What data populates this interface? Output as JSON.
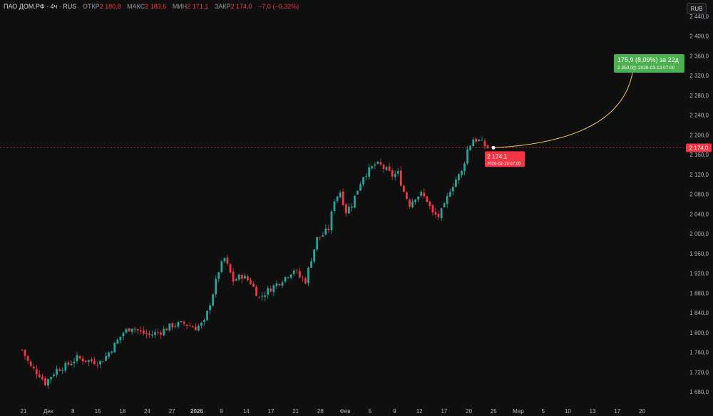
{
  "legend": {
    "symbol": "ПАО ДОМ.РФ · 4ч · RUS",
    "open_label": "ОТКР",
    "open_value": "2 180,8",
    "high_label": "МАКС",
    "high_value": "2 183,6",
    "low_label": "МИН",
    "low_value": "2 171,1",
    "close_label": "ЗАКР",
    "close_value": "2 174,0",
    "change": "−7,0 (−0,32%)"
  },
  "currency_button": "RUB",
  "colors": {
    "background": "#0f0f0f",
    "up": "#26a69a",
    "down": "#f23645",
    "price_line": "#f23645",
    "projection_curve": "#f2c94c",
    "target_badge": "#4caf50",
    "current_badge": "#f23645"
  },
  "current_price_tag": "2 174,0",
  "projection": {
    "start": {
      "price": 2174.1,
      "label": "2 174,1",
      "date": "2026-02-19 07:00"
    },
    "end": {
      "price": 2350.0,
      "label": "2 350,0",
      "date": "2026-03-13 07:00"
    },
    "change_text": "175,9 (8,09%) за 22д"
  },
  "chart_data": {
    "type": "candlestick",
    "timeframe": "4ч",
    "ylim": [
      1660,
      2440
    ],
    "y_ticks": [
      "1 680,0",
      "1 720,0",
      "1 760,0",
      "1 800,0",
      "1 840,0",
      "1 880,0",
      "1 920,0",
      "1 960,0",
      "2 000,0",
      "2 040,0",
      "2 080,0",
      "2 120,0",
      "2 160,0",
      "2 200,0",
      "2 240,0",
      "2 280,0",
      "2 320,0",
      "2 360,0",
      "2 400,0",
      "2 440,0"
    ],
    "x_ticks": [
      "21",
      "Дек",
      "8",
      "15",
      "18",
      "24",
      "27",
      "2026",
      "9",
      "14",
      "17",
      "21",
      "28",
      "Фев",
      "5",
      "9",
      "12",
      "17",
      "20",
      "25",
      "Мар",
      "5",
      "10",
      "13",
      "17",
      "20"
    ],
    "price_path": [
      [
        0,
        1765
      ],
      [
        3,
        1730
      ],
      [
        6,
        1715
      ],
      [
        8,
        1698
      ],
      [
        10,
        1712
      ],
      [
        12,
        1725
      ],
      [
        15,
        1732
      ],
      [
        19,
        1748
      ],
      [
        23,
        1743
      ],
      [
        27,
        1740
      ],
      [
        29,
        1752
      ],
      [
        32,
        1775
      ],
      [
        35,
        1800
      ],
      [
        38,
        1812
      ],
      [
        41,
        1800
      ],
      [
        44,
        1795
      ],
      [
        48,
        1802
      ],
      [
        52,
        1815
      ],
      [
        56,
        1818
      ],
      [
        60,
        1810
      ],
      [
        63,
        1820
      ],
      [
        66,
        1880
      ],
      [
        68,
        1925
      ],
      [
        70,
        1950
      ],
      [
        73,
        1905
      ],
      [
        76,
        1915
      ],
      [
        79,
        1902
      ],
      [
        82,
        1870
      ],
      [
        85,
        1885
      ],
      [
        88,
        1898
      ],
      [
        91,
        1912
      ],
      [
        94,
        1928
      ],
      [
        96,
        1912
      ],
      [
        98,
        1905
      ],
      [
        100,
        1950
      ],
      [
        102,
        1990
      ],
      [
        104,
        1998
      ],
      [
        106,
        2010
      ],
      [
        108,
        2070
      ],
      [
        110,
        2085
      ],
      [
        112,
        2045
      ],
      [
        114,
        2060
      ],
      [
        116,
        2090
      ],
      [
        118,
        2118
      ],
      [
        120,
        2128
      ],
      [
        122,
        2140
      ],
      [
        124,
        2138
      ],
      [
        126,
        2128
      ],
      [
        128,
        2118
      ],
      [
        130,
        2122
      ],
      [
        132,
        2085
      ],
      [
        134,
        2060
      ],
      [
        136,
        2075
      ],
      [
        138,
        2080
      ],
      [
        140,
        2068
      ],
      [
        142,
        2040
      ],
      [
        144,
        2035
      ],
      [
        146,
        2055
      ],
      [
        148,
        2090
      ],
      [
        150,
        2110
      ],
      [
        152,
        2125
      ],
      [
        154,
        2170
      ],
      [
        156,
        2192
      ],
      [
        158,
        2188
      ],
      [
        160,
        2178
      ],
      [
        161,
        2174
      ]
    ],
    "last_close": 2174.0,
    "open": 2180.8,
    "high": 2183.6,
    "low": 2171.1,
    "close": 2174.0,
    "change": -7.0,
    "change_pct": -0.32
  }
}
